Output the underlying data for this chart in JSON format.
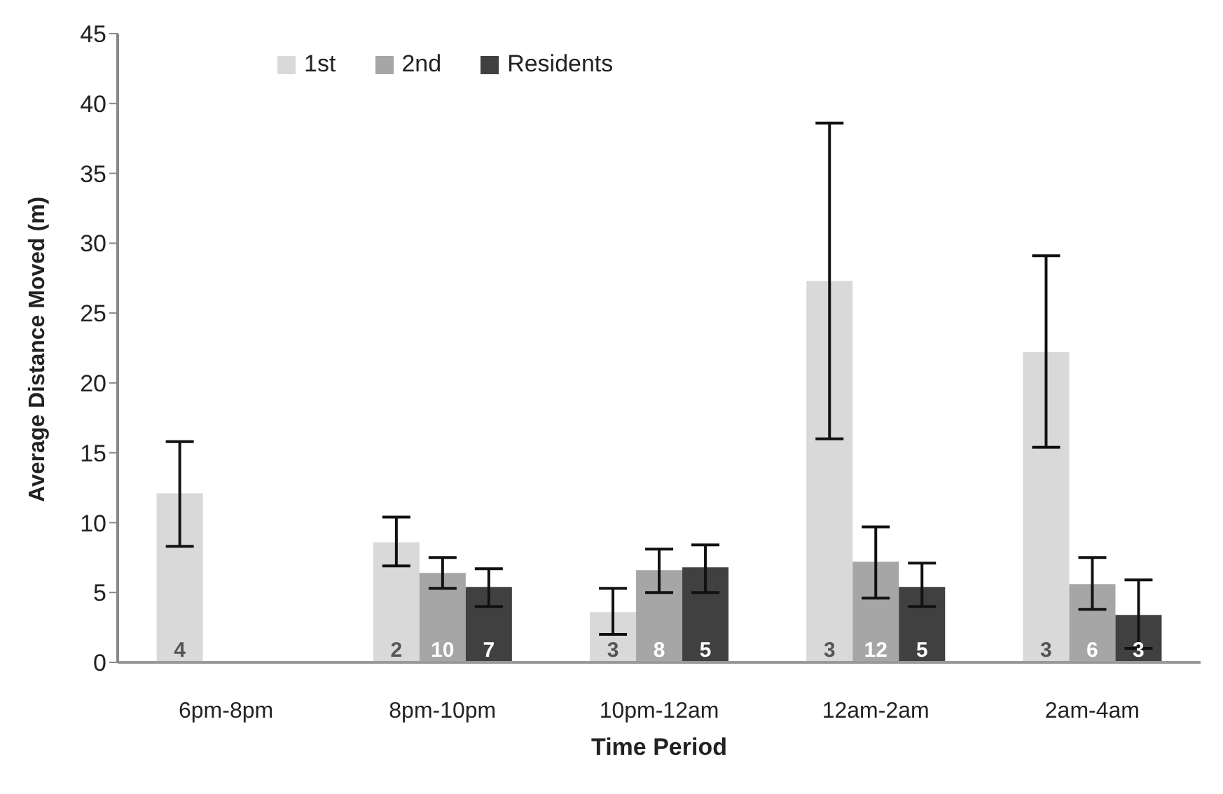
{
  "chart_data": {
    "type": "bar",
    "xlabel": "Time Period",
    "ylabel": "Average Distance Moved (m)",
    "categories": [
      "6pm-8pm",
      "8pm-10pm",
      "10pm-12am",
      "12am-2am",
      "2am-4am"
    ],
    "ylim": [
      0,
      45
    ],
    "yticks": [
      0,
      5,
      10,
      15,
      20,
      25,
      30,
      35,
      40,
      45
    ],
    "grid": false,
    "legend": "top left",
    "series": [
      {
        "name": "1st",
        "color": "#d9d9d9",
        "values": [
          12.1,
          8.6,
          3.6,
          27.3,
          22.2
        ],
        "errors": [
          [
            8.3,
            15.8
          ],
          [
            6.9,
            10.4
          ],
          [
            2.0,
            5.3
          ],
          [
            16.0,
            38.6
          ],
          [
            15.4,
            29.1
          ]
        ]
      },
      {
        "name": "2nd",
        "color": "#a6a6a6",
        "values": [
          null,
          6.4,
          6.6,
          7.2,
          5.6
        ],
        "errors": [
          null,
          [
            5.3,
            7.5
          ],
          [
            5.0,
            8.1
          ],
          [
            4.6,
            9.7
          ],
          [
            3.8,
            7.5
          ]
        ]
      },
      {
        "name": "Residents",
        "color": "#404040",
        "values": [
          null,
          5.4,
          6.8,
          5.4,
          3.4
        ],
        "errors": [
          null,
          [
            4.0,
            6.7
          ],
          [
            5.0,
            8.4
          ],
          [
            4.0,
            7.1
          ],
          [
            1.0,
            5.9
          ]
        ]
      }
    ],
    "annotations": [
      "4",
      "2",
      "10",
      "7",
      "3",
      "8",
      "5",
      "3",
      "12",
      "5",
      "3",
      "6",
      "3"
    ]
  }
}
